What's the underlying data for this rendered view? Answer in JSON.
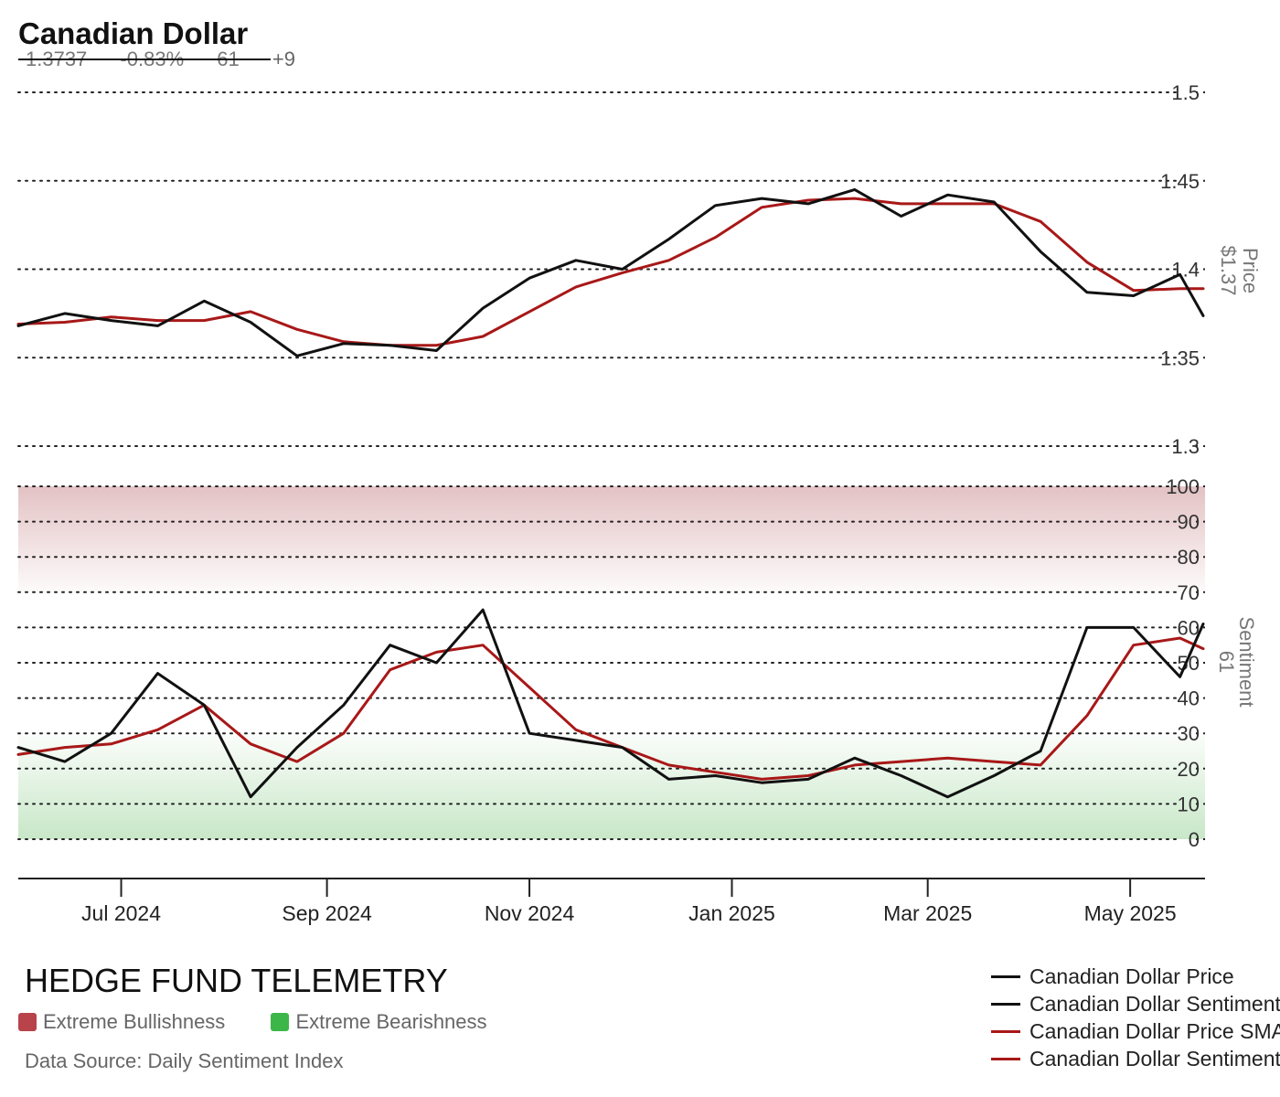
{
  "title": "Canadian Dollar",
  "stats": {
    "price": "1.3737",
    "change_pct": "-0.83%",
    "sentiment": "61",
    "sentiment_change": "+9"
  },
  "brand": "HEDGE FUND TELEMETRY",
  "zones": [
    {
      "label": "Extreme Bullishness",
      "color": "#b8434a"
    },
    {
      "label": "Extreme Bearishness",
      "color": "#3cb648"
    }
  ],
  "source": "Data Source: Daily Sentiment Index",
  "legend": [
    {
      "label": "Canadian Dollar Price",
      "color": "#111111"
    },
    {
      "label": "Canadian Dollar Sentiment",
      "color": "#111111"
    },
    {
      "label": "Canadian Dollar Price SMA",
      "color": "#a81818"
    },
    {
      "label": "Canadian Dollar Sentiment SMA",
      "color": "#a81818"
    }
  ],
  "colors": {
    "line": "#111111",
    "sma": "#a81818",
    "bull_zone": "#e3c2c4",
    "bear_zone": "#c8e7c8",
    "grid": "#222222"
  },
  "chart_data": [
    {
      "type": "line",
      "ylabel": "Price",
      "ylabel_value": "$1.37",
      "ylim": [
        1.3,
        1.5
      ],
      "yticks": [
        "1.3",
        "1.35",
        "1.4",
        "1.45",
        "1.5"
      ],
      "x": [
        "2024-05-31",
        "2024-06-14",
        "2024-06-28",
        "2024-07-12",
        "2024-07-26",
        "2024-08-09",
        "2024-08-23",
        "2024-09-06",
        "2024-09-20",
        "2024-10-04",
        "2024-10-18",
        "2024-11-01",
        "2024-11-15",
        "2024-11-29",
        "2024-12-13",
        "2024-12-27",
        "2025-01-10",
        "2025-01-24",
        "2025-02-07",
        "2025-02-21",
        "2025-03-07",
        "2025-03-21",
        "2025-04-04",
        "2025-04-18",
        "2025-05-02",
        "2025-05-16",
        "2025-05-23"
      ],
      "series": [
        {
          "name": "Canadian Dollar Price",
          "values": [
            1.368,
            1.375,
            1.371,
            1.368,
            1.382,
            1.37,
            1.351,
            1.358,
            1.357,
            1.354,
            1.378,
            1.395,
            1.405,
            1.4,
            1.417,
            1.436,
            1.44,
            1.437,
            1.445,
            1.43,
            1.442,
            1.438,
            1.41,
            1.387,
            1.385,
            1.397,
            1.3737
          ]
        },
        {
          "name": "Canadian Dollar Price SMA",
          "values": [
            1.369,
            1.37,
            1.373,
            1.371,
            1.371,
            1.376,
            1.366,
            1.359,
            1.357,
            1.357,
            1.362,
            1.376,
            1.39,
            1.398,
            1.405,
            1.418,
            1.435,
            1.439,
            1.44,
            1.437,
            1.437,
            1.437,
            1.427,
            1.404,
            1.388,
            1.389,
            1.389
          ]
        }
      ]
    },
    {
      "type": "line",
      "ylabel": "Sentiment",
      "ylabel_value": "61",
      "ylim": [
        0,
        100
      ],
      "yticks": [
        "0",
        "10",
        "20",
        "30",
        "40",
        "50",
        "60",
        "70",
        "80",
        "90",
        "100"
      ],
      "extreme_bullish_range": [
        70,
        100
      ],
      "extreme_bearish_range": [
        0,
        30
      ],
      "x": [
        "2024-05-31",
        "2024-06-14",
        "2024-06-28",
        "2024-07-12",
        "2024-07-26",
        "2024-08-09",
        "2024-08-23",
        "2024-09-06",
        "2024-09-20",
        "2024-10-04",
        "2024-10-18",
        "2024-11-01",
        "2024-11-15",
        "2024-11-29",
        "2024-12-13",
        "2024-12-27",
        "2025-01-10",
        "2025-01-24",
        "2025-02-07",
        "2025-02-21",
        "2025-03-07",
        "2025-03-21",
        "2025-04-04",
        "2025-04-18",
        "2025-05-02",
        "2025-05-16",
        "2025-05-23"
      ],
      "series": [
        {
          "name": "Canadian Dollar Sentiment",
          "values": [
            26,
            22,
            30,
            47,
            38,
            12,
            26,
            38,
            55,
            50,
            65,
            30,
            28,
            26,
            17,
            18,
            16,
            17,
            23,
            18,
            12,
            18,
            25,
            60,
            60,
            46,
            61
          ]
        },
        {
          "name": "Canadian Dollar Sentiment SMA",
          "values": [
            24,
            26,
            27,
            31,
            38,
            27,
            22,
            30,
            48,
            53,
            55,
            43,
            31,
            26,
            21,
            19,
            17,
            18,
            21,
            22,
            23,
            22,
            21,
            35,
            55,
            57,
            54
          ]
        }
      ]
    }
  ],
  "x_axis": {
    "labels": [
      "Jul 2024",
      "Sep 2024",
      "Nov 2024",
      "Jan 2025",
      "Mar 2025",
      "May 2025"
    ],
    "dates": [
      "2024-07-01",
      "2024-09-01",
      "2024-11-01",
      "2025-01-01",
      "2025-03-01",
      "2025-05-01"
    ]
  }
}
